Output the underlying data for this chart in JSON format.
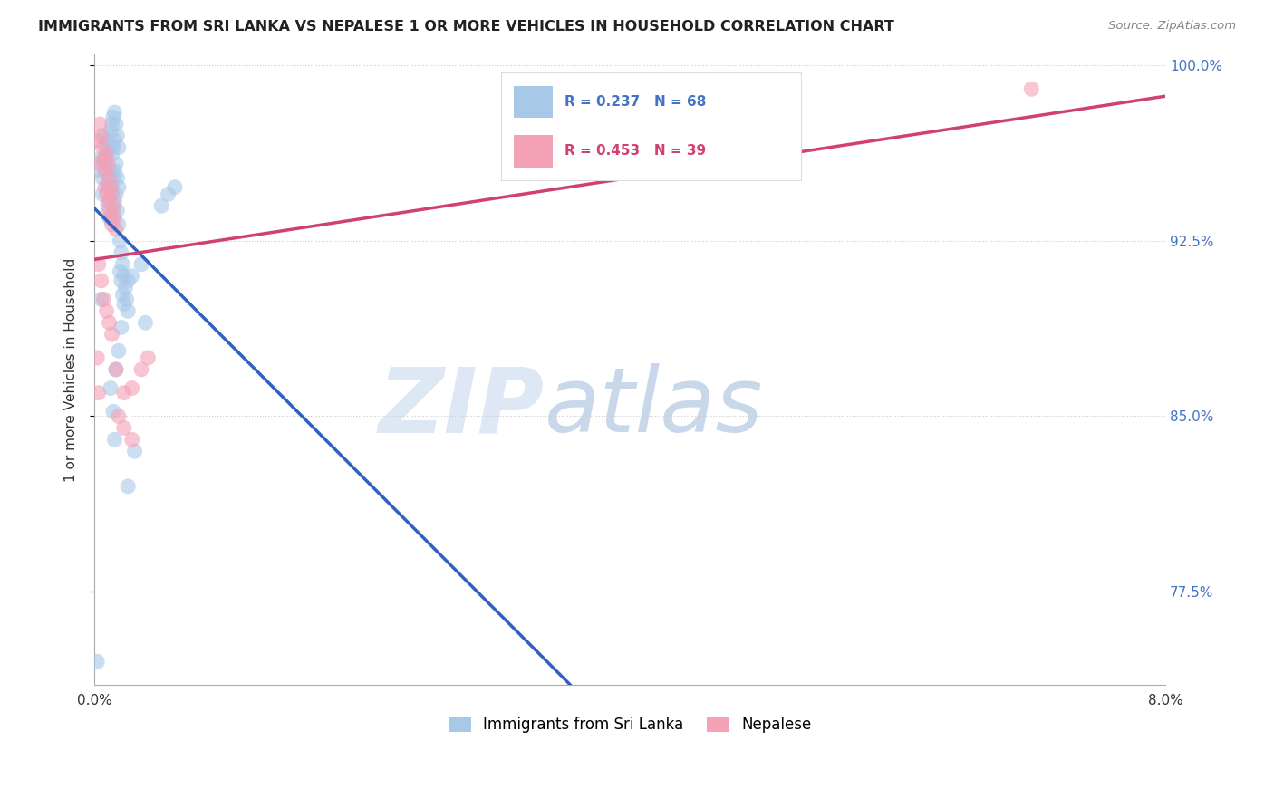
{
  "title": "IMMIGRANTS FROM SRI LANKA VS NEPALESE 1 OR MORE VEHICLES IN HOUSEHOLD CORRELATION CHART",
  "source": "Source: ZipAtlas.com",
  "ylabel": "1 or more Vehicles in Household",
  "xlim": [
    0.0,
    0.08
  ],
  "ylim": [
    0.735,
    1.005
  ],
  "yticks": [
    0.775,
    0.85,
    0.925,
    1.0
  ],
  "ytick_labels": [
    "77.5%",
    "85.0%",
    "92.5%",
    "100.0%"
  ],
  "xticks": [
    0.0,
    0.01,
    0.02,
    0.03,
    0.04,
    0.05,
    0.06,
    0.07,
    0.08
  ],
  "xtick_labels": [
    "0.0%",
    "",
    "",
    "",
    "",
    "",
    "",
    "",
    "8.0%"
  ],
  "legend_labels": [
    "Immigrants from Sri Lanka",
    "Nepalese"
  ],
  "R_sri": 0.237,
  "N_sri": 68,
  "R_nep": 0.453,
  "N_nep": 39,
  "color_sri": "#a8c8e8",
  "color_nep": "#f4a0b5",
  "line_color_sri": "#3060c0",
  "line_color_nep": "#d04070",
  "watermark_zip": "ZIP",
  "watermark_atlas": "atlas",
  "scatter_sri": [
    [
      0.0002,
      0.745
    ],
    [
      0.0004,
      0.96
    ],
    [
      0.0005,
      0.955
    ],
    [
      0.0006,
      0.952
    ],
    [
      0.0006,
      0.945
    ],
    [
      0.0007,
      0.97
    ],
    [
      0.0007,
      0.96
    ],
    [
      0.0008,
      0.965
    ],
    [
      0.0008,
      0.958
    ],
    [
      0.0009,
      0.962
    ],
    [
      0.0009,
      0.955
    ],
    [
      0.001,
      0.968
    ],
    [
      0.001,
      0.95
    ],
    [
      0.001,
      0.94
    ],
    [
      0.0011,
      0.965
    ],
    [
      0.0011,
      0.948
    ],
    [
      0.0011,
      0.935
    ],
    [
      0.0012,
      0.972
    ],
    [
      0.0012,
      0.955
    ],
    [
      0.0012,
      0.942
    ],
    [
      0.0013,
      0.975
    ],
    [
      0.0013,
      0.962
    ],
    [
      0.0013,
      0.948
    ],
    [
      0.0013,
      0.935
    ],
    [
      0.0014,
      0.978
    ],
    [
      0.0014,
      0.965
    ],
    [
      0.0014,
      0.952
    ],
    [
      0.0014,
      0.938
    ],
    [
      0.0015,
      0.98
    ],
    [
      0.0015,
      0.968
    ],
    [
      0.0015,
      0.955
    ],
    [
      0.0015,
      0.942
    ],
    [
      0.0016,
      0.975
    ],
    [
      0.0016,
      0.958
    ],
    [
      0.0016,
      0.945
    ],
    [
      0.0017,
      0.97
    ],
    [
      0.0017,
      0.952
    ],
    [
      0.0017,
      0.938
    ],
    [
      0.0018,
      0.965
    ],
    [
      0.0018,
      0.948
    ],
    [
      0.0018,
      0.932
    ],
    [
      0.0019,
      0.925
    ],
    [
      0.0019,
      0.912
    ],
    [
      0.002,
      0.92
    ],
    [
      0.002,
      0.908
    ],
    [
      0.0021,
      0.915
    ],
    [
      0.0021,
      0.902
    ],
    [
      0.0022,
      0.91
    ],
    [
      0.0022,
      0.898
    ],
    [
      0.0023,
      0.905
    ],
    [
      0.0024,
      0.9
    ],
    [
      0.0025,
      0.895
    ],
    [
      0.0025,
      0.908
    ],
    [
      0.0012,
      0.862
    ],
    [
      0.0014,
      0.852
    ],
    [
      0.0015,
      0.84
    ],
    [
      0.0016,
      0.87
    ],
    [
      0.0018,
      0.878
    ],
    [
      0.002,
      0.888
    ],
    [
      0.0005,
      0.9
    ],
    [
      0.0028,
      0.91
    ],
    [
      0.0035,
      0.915
    ],
    [
      0.005,
      0.94
    ],
    [
      0.0055,
      0.945
    ],
    [
      0.006,
      0.948
    ],
    [
      0.0038,
      0.89
    ],
    [
      0.0025,
      0.82
    ],
    [
      0.003,
      0.835
    ]
  ],
  "scatter_nep": [
    [
      0.0002,
      0.968
    ],
    [
      0.0003,
      0.958
    ],
    [
      0.0004,
      0.975
    ],
    [
      0.0005,
      0.97
    ],
    [
      0.0006,
      0.965
    ],
    [
      0.0007,
      0.96
    ],
    [
      0.0008,
      0.955
    ],
    [
      0.0008,
      0.948
    ],
    [
      0.0009,
      0.962
    ],
    [
      0.0009,
      0.945
    ],
    [
      0.001,
      0.958
    ],
    [
      0.001,
      0.942
    ],
    [
      0.0011,
      0.952
    ],
    [
      0.0011,
      0.938
    ],
    [
      0.0012,
      0.948
    ],
    [
      0.0012,
      0.935
    ],
    [
      0.0013,
      0.945
    ],
    [
      0.0013,
      0.932
    ],
    [
      0.0014,
      0.94
    ],
    [
      0.0015,
      0.935
    ],
    [
      0.0016,
      0.93
    ],
    [
      0.0003,
      0.915
    ],
    [
      0.0005,
      0.908
    ],
    [
      0.0007,
      0.9
    ],
    [
      0.0009,
      0.895
    ],
    [
      0.0011,
      0.89
    ],
    [
      0.0013,
      0.885
    ],
    [
      0.0002,
      0.875
    ],
    [
      0.0016,
      0.87
    ],
    [
      0.0003,
      0.86
    ],
    [
      0.0018,
      0.85
    ],
    [
      0.0022,
      0.845
    ],
    [
      0.0028,
      0.84
    ],
    [
      0.0035,
      0.87
    ],
    [
      0.0022,
      0.86
    ],
    [
      0.004,
      0.875
    ],
    [
      0.0028,
      0.862
    ],
    [
      0.07,
      0.99
    ],
    [
      0.047,
      0.958
    ]
  ],
  "reg_sri": [
    0.88,
    1.005
  ],
  "reg_nep": [
    0.935,
    1.005
  ]
}
